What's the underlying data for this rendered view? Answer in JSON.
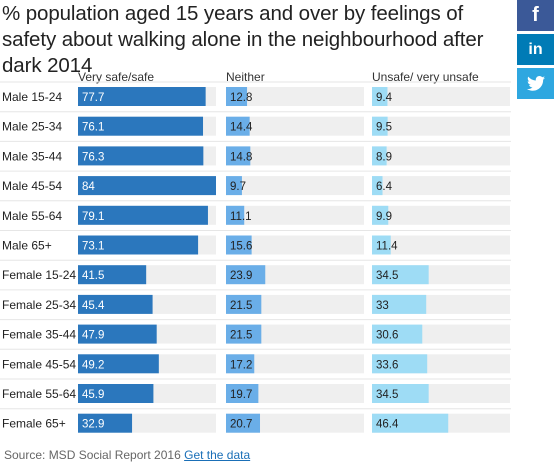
{
  "title": "% population aged 15 years and over by feelings of safety about walking alone in the neighbourhood after dark 2014",
  "share": {
    "facebook": "f",
    "linkedin": "in",
    "twitter_icon": "twitter-bird-icon"
  },
  "footer": {
    "source": "Source: MSD Social Report 2016",
    "link": "Get the data"
  },
  "colors": {
    "safe": "#2b77bd",
    "neither": "#6aaee8",
    "unsafe": "#9edcf5",
    "track": "#efefef"
  },
  "chart_data": {
    "type": "bar",
    "title": "% population aged 15 years and over by feelings of safety about walking alone in the neighbourhood after dark 2014",
    "categories": [
      "Male 15-24",
      "Male 25-34",
      "Male 35-44",
      "Male 45-54",
      "Male 55-64",
      "Male 65+",
      "Female 15-24",
      "Female 25-34",
      "Female 35-44",
      "Female 45-54",
      "Female 55-64",
      "Female 65+"
    ],
    "series": [
      {
        "name": "Very safe/safe",
        "values": [
          77.7,
          76.1,
          76.3,
          84,
          79.1,
          73.1,
          41.5,
          45.4,
          47.9,
          49.2,
          45.9,
          32.9
        ]
      },
      {
        "name": "Neither",
        "values": [
          12.8,
          14.4,
          14.8,
          9.7,
          11.1,
          15.6,
          23.9,
          21.5,
          21.5,
          17.2,
          19.7,
          20.7
        ]
      },
      {
        "name": "Unsafe/ very unsafe",
        "values": [
          9.4,
          9.5,
          8.9,
          6.4,
          9.9,
          11.4,
          34.5,
          33,
          30.6,
          33.6,
          34.5,
          46.4
        ]
      }
    ],
    "value_labels": [
      [
        "77.7",
        "76.1",
        "76.3",
        "84",
        "79.1",
        "73.1",
        "41.5",
        "45.4",
        "47.9",
        "49.2",
        "45.9",
        "32.9"
      ],
      [
        "12.8",
        "14.4",
        "14.8",
        "9.7",
        "11.1",
        "15.6",
        "23.9",
        "21.5",
        "21.5",
        "17.2",
        "19.7",
        "20.7"
      ],
      [
        "9.4",
        "9.5",
        "8.9",
        "6.4",
        "9.9",
        "11.4",
        "34.5",
        "33",
        "30.6",
        "33.6",
        "34.5",
        "46.4"
      ]
    ],
    "xlim": [
      0,
      84
    ],
    "grid": false,
    "legend": "column headers"
  }
}
